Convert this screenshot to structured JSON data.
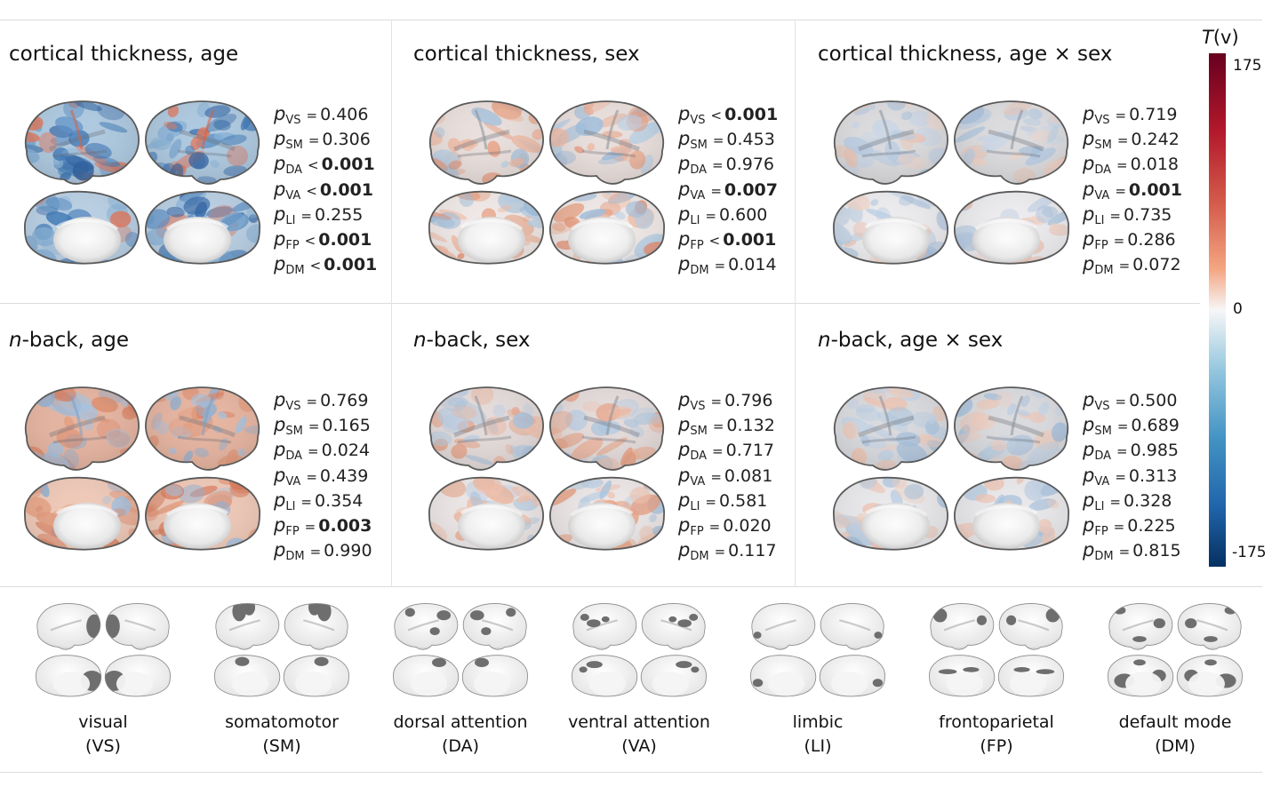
{
  "panels": [
    {
      "title": "cortical thickness, age",
      "pvalues": [
        {
          "net": "VS",
          "op": "=",
          "val": "0.406",
          "sig": false
        },
        {
          "net": "SM",
          "op": "=",
          "val": "0.306",
          "sig": false
        },
        {
          "net": "DA",
          "op": "<",
          "val": "0.001",
          "sig": true
        },
        {
          "net": "VA",
          "op": "<",
          "val": "0.001",
          "sig": true
        },
        {
          "net": "LI",
          "op": "=",
          "val": "0.255",
          "sig": false
        },
        {
          "net": "FP",
          "op": "<",
          "val": "0.001",
          "sig": true
        },
        {
          "net": "DM",
          "op": "<",
          "val": "0.001",
          "sig": true
        }
      ]
    },
    {
      "title": "cortical thickness, sex",
      "pvalues": [
        {
          "net": "VS",
          "op": "<",
          "val": "0.001",
          "sig": true
        },
        {
          "net": "SM",
          "op": "=",
          "val": "0.453",
          "sig": false
        },
        {
          "net": "DA",
          "op": "=",
          "val": "0.976",
          "sig": false
        },
        {
          "net": "VA",
          "op": "=",
          "val": "0.007",
          "sig": true
        },
        {
          "net": "LI",
          "op": "=",
          "val": "0.600",
          "sig": false
        },
        {
          "net": "FP",
          "op": "<",
          "val": "0.001",
          "sig": true
        },
        {
          "net": "DM",
          "op": "=",
          "val": "0.014",
          "sig": false
        }
      ]
    },
    {
      "title": "cortical thickness, age × sex",
      "pvalues": [
        {
          "net": "VS",
          "op": "=",
          "val": "0.719",
          "sig": false
        },
        {
          "net": "SM",
          "op": "=",
          "val": "0.242",
          "sig": false
        },
        {
          "net": "DA",
          "op": "=",
          "val": "0.018",
          "sig": false
        },
        {
          "net": "VA",
          "op": "=",
          "val": "0.001",
          "sig": true
        },
        {
          "net": "LI",
          "op": "=",
          "val": "0.735",
          "sig": false
        },
        {
          "net": "FP",
          "op": "=",
          "val": "0.286",
          "sig": false
        },
        {
          "net": "DM",
          "op": "=",
          "val": "0.072",
          "sig": false
        }
      ]
    },
    {
      "title_italic": "n",
      "title": "-back, age",
      "pvalues": [
        {
          "net": "VS",
          "op": "=",
          "val": "0.769",
          "sig": false
        },
        {
          "net": "SM",
          "op": "=",
          "val": "0.165",
          "sig": false
        },
        {
          "net": "DA",
          "op": "=",
          "val": "0.024",
          "sig": false
        },
        {
          "net": "VA",
          "op": "=",
          "val": "0.439",
          "sig": false
        },
        {
          "net": "LI",
          "op": "=",
          "val": "0.354",
          "sig": false
        },
        {
          "net": "FP",
          "op": "=",
          "val": "0.003",
          "sig": true
        },
        {
          "net": "DM",
          "op": "=",
          "val": "0.990",
          "sig": false
        }
      ]
    },
    {
      "title_italic": "n",
      "title": "-back, sex",
      "pvalues": [
        {
          "net": "VS",
          "op": "=",
          "val": "0.796",
          "sig": false
        },
        {
          "net": "SM",
          "op": "=",
          "val": "0.132",
          "sig": false
        },
        {
          "net": "DA",
          "op": "=",
          "val": "0.717",
          "sig": false
        },
        {
          "net": "VA",
          "op": "=",
          "val": "0.081",
          "sig": false
        },
        {
          "net": "LI",
          "op": "=",
          "val": "0.581",
          "sig": false
        },
        {
          "net": "FP",
          "op": "=",
          "val": "0.020",
          "sig": false
        },
        {
          "net": "DM",
          "op": "=",
          "val": "0.117",
          "sig": false
        }
      ]
    },
    {
      "title_italic": "n",
      "title": "-back, age × sex",
      "pvalues": [
        {
          "net": "VS",
          "op": "=",
          "val": "0.500",
          "sig": false
        },
        {
          "net": "SM",
          "op": "=",
          "val": "0.689",
          "sig": false
        },
        {
          "net": "DA",
          "op": "=",
          "val": "0.985",
          "sig": false
        },
        {
          "net": "VA",
          "op": "=",
          "val": "0.313",
          "sig": false
        },
        {
          "net": "LI",
          "op": "=",
          "val": "0.328",
          "sig": false
        },
        {
          "net": "FP",
          "op": "=",
          "val": "0.225",
          "sig": false
        },
        {
          "net": "DM",
          "op": "=",
          "val": "0.815",
          "sig": false
        }
      ]
    }
  ],
  "p_symbol": "p",
  "colorbar": {
    "title_italic": "T",
    "title_rest": "(v)",
    "max": "175",
    "mid": "0",
    "min": "-175"
  },
  "networks": [
    {
      "name": "visual",
      "abbr": "(VS)"
    },
    {
      "name": "somatomotor",
      "abbr": "(SM)"
    },
    {
      "name": "dorsal attention",
      "abbr": "(DA)"
    },
    {
      "name": "ventral attention",
      "abbr": "(VA)"
    },
    {
      "name": "limbic",
      "abbr": "(LI)"
    },
    {
      "name": "frontoparietal",
      "abbr": "(FP)"
    },
    {
      "name": "default mode",
      "abbr": "(DM)"
    }
  ]
}
